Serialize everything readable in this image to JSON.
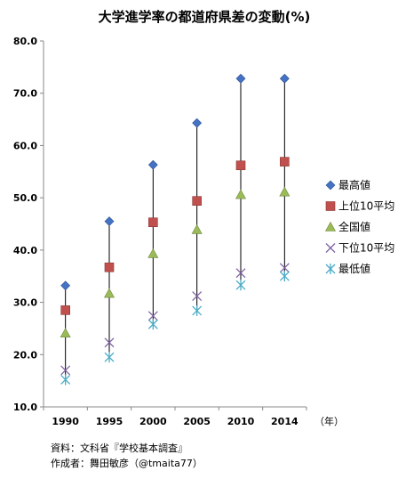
{
  "chart_data": {
    "type": "scatter",
    "title": "大学進学率の都道府県差の変動(%)",
    "x_unit": "（年）",
    "categories": [
      "1990",
      "1995",
      "2000",
      "2005",
      "2010",
      "2014"
    ],
    "y_ticks": [
      "10.0",
      "20.0",
      "30.0",
      "40.0",
      "50.0",
      "60.0",
      "70.0",
      "80.0"
    ],
    "ylim": [
      10,
      80
    ],
    "series": [
      {
        "name": "最高値",
        "marker": "diamond",
        "color": "#4472C4",
        "values": [
          33.2,
          45.5,
          56.3,
          64.3,
          72.8,
          72.8
        ]
      },
      {
        "name": "上位10平均",
        "marker": "square",
        "color": "#C0504D",
        "values": [
          28.5,
          36.7,
          45.3,
          49.4,
          56.2,
          56.9
        ]
      },
      {
        "name": "全国値",
        "marker": "triangle",
        "color": "#9BBB59",
        "values": [
          24.1,
          31.7,
          39.3,
          43.9,
          50.6,
          51.1
        ]
      },
      {
        "name": "下位10平均",
        "marker": "x",
        "color": "#8064A2",
        "values": [
          17.0,
          22.3,
          27.4,
          31.2,
          35.6,
          36.6
        ]
      },
      {
        "name": "最低値",
        "marker": "star",
        "color": "#4BACC6",
        "values": [
          15.2,
          19.5,
          25.8,
          28.4,
          33.3,
          35.0
        ]
      }
    ]
  },
  "notes": {
    "source": "資料：文科省『学校基本調査』",
    "author": "作成者：舞田敏彦（@tmaita77）"
  }
}
